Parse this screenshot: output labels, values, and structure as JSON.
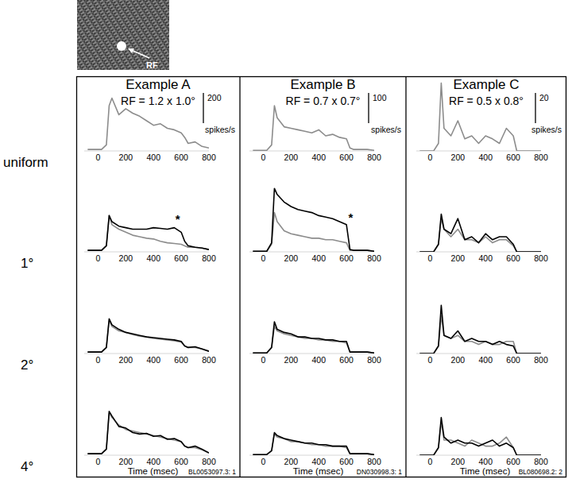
{
  "inset": {
    "label": "RF"
  },
  "rows": [
    "uniform",
    "1°",
    "2°",
    "4°"
  ],
  "columns": [
    {
      "title": "Example A",
      "subtitle": "RF = 1.2 x 1.0°",
      "id": "BL0053097.3: 1"
    },
    {
      "title": "Example B",
      "subtitle": "RF = 0.7 x 0.7°",
      "id": "DN030998.3: 1"
    },
    {
      "title": "Example C",
      "subtitle": "RF = 0.5 x 0.8°",
      "id": "BL080698.2: 2"
    }
  ],
  "chart_data": [
    {
      "type": "line",
      "x": [
        -75,
        -25,
        25,
        60,
        80,
        100,
        150,
        200,
        250,
        300,
        350,
        400,
        450,
        500,
        550,
        600,
        625,
        650,
        700,
        750,
        800
      ],
      "xlim": [
        -100,
        800
      ],
      "xticks": [
        0,
        200,
        400,
        600,
        800
      ],
      "ylim": [
        0,
        500
      ],
      "tick_labels": "x",
      "scale_bar": {
        "value": 200,
        "unit": "spikes/s"
      },
      "series": [
        {
          "color": "#8c8c8c",
          "values": [
            10,
            10,
            10,
            40,
            300,
            350,
            240,
            280,
            250,
            230,
            200,
            170,
            180,
            150,
            140,
            120,
            90,
            50,
            60,
            30,
            20
          ]
        }
      ]
    },
    {
      "type": "line",
      "x": [
        -75,
        -25,
        25,
        60,
        80,
        100,
        150,
        200,
        250,
        300,
        350,
        400,
        450,
        500,
        550,
        600,
        625,
        650,
        700,
        750,
        800
      ],
      "xlim": [
        -100,
        800
      ],
      "xticks": [
        0,
        200,
        400,
        600,
        800
      ],
      "ylim": [
        0,
        250
      ],
      "tick_labels": "x",
      "scale_bar": {
        "value": 100,
        "unit": "spikes/s"
      },
      "series": [
        {
          "color": "#8c8c8c",
          "values": [
            2,
            2,
            2,
            20,
            150,
            110,
            80,
            75,
            70,
            65,
            60,
            70,
            50,
            55,
            45,
            40,
            10,
            5,
            5,
            5,
            2
          ]
        }
      ]
    },
    {
      "type": "line",
      "x": [
        -75,
        -25,
        25,
        60,
        80,
        100,
        150,
        200,
        250,
        300,
        350,
        400,
        450,
        500,
        550,
        600,
        625,
        650,
        700,
        750,
        800
      ],
      "xlim": [
        -100,
        800
      ],
      "xticks": [
        0,
        200,
        400,
        600,
        800
      ],
      "ylim": [
        0,
        50
      ],
      "tick_labels": "x",
      "scale_bar": {
        "value": 20,
        "unit": "spikes/s"
      },
      "series": [
        {
          "color": "#8c8c8c",
          "values": [
            0,
            0,
            0,
            5,
            45,
            15,
            10,
            20,
            8,
            10,
            5,
            10,
            8,
            5,
            15,
            10,
            0,
            0,
            0,
            0,
            0
          ]
        }
      ]
    },
    {
      "type": "line",
      "x": [
        -75,
        -25,
        25,
        60,
        80,
        100,
        150,
        200,
        250,
        300,
        350,
        400,
        450,
        500,
        550,
        600,
        625,
        650,
        700,
        750,
        800
      ],
      "xlim": [
        -100,
        800
      ],
      "xticks": [
        0,
        200,
        400,
        600,
        800
      ],
      "ylim": [
        0,
        500
      ],
      "tick_labels": "x",
      "annotations": [
        {
          "text": "*",
          "x": 575,
          "y": 190
        }
      ],
      "series": [
        {
          "color": "#8c8c8c",
          "values": [
            10,
            10,
            10,
            40,
            240,
            180,
            150,
            130,
            110,
            100,
            90,
            85,
            70,
            60,
            55,
            50,
            40,
            30,
            30,
            25,
            15
          ]
        },
        {
          "color": "#000000",
          "values": [
            10,
            10,
            10,
            40,
            240,
            200,
            170,
            160,
            150,
            150,
            150,
            160,
            155,
            150,
            160,
            130,
            70,
            40,
            30,
            25,
            15
          ]
        }
      ]
    },
    {
      "type": "line",
      "x": [
        -75,
        -25,
        25,
        60,
        80,
        100,
        150,
        200,
        250,
        300,
        350,
        400,
        450,
        500,
        550,
        600,
        625,
        650,
        700,
        750,
        800
      ],
      "xlim": [
        -100,
        800
      ],
      "xticks": [
        0,
        200,
        400,
        600,
        800
      ],
      "ylim": [
        0,
        250
      ],
      "tick_labels": "x",
      "annotations": [
        {
          "text": "*",
          "x": 630,
          "y": 100
        }
      ],
      "series": [
        {
          "color": "#8c8c8c",
          "values": [
            2,
            2,
            2,
            25,
            130,
            100,
            70,
            60,
            55,
            50,
            45,
            45,
            40,
            40,
            35,
            30,
            5,
            5,
            5,
            5,
            2
          ]
        },
        {
          "color": "#000000",
          "values": [
            2,
            2,
            2,
            30,
            210,
            190,
            165,
            150,
            140,
            135,
            130,
            120,
            115,
            110,
            100,
            90,
            8,
            5,
            5,
            5,
            2
          ]
        }
      ]
    },
    {
      "type": "line",
      "x": [
        -75,
        -25,
        25,
        60,
        80,
        100,
        150,
        200,
        250,
        300,
        350,
        400,
        450,
        500,
        550,
        600,
        625,
        650,
        700,
        750,
        800
      ],
      "xlim": [
        -100,
        800
      ],
      "xticks": [
        0,
        200,
        400,
        600,
        800
      ],
      "ylim": [
        0,
        50
      ],
      "tick_labels": "x",
      "series": [
        {
          "color": "#8c8c8c",
          "values": [
            0,
            0,
            0,
            5,
            22,
            15,
            10,
            15,
            8,
            8,
            6,
            10,
            6,
            8,
            8,
            4,
            0,
            0,
            0,
            0,
            0
          ]
        },
        {
          "color": "#000000",
          "values": [
            0,
            0,
            0,
            5,
            25,
            15,
            12,
            22,
            8,
            10,
            6,
            12,
            8,
            10,
            10,
            5,
            0,
            0,
            0,
            0,
            0
          ]
        }
      ]
    },
    {
      "type": "line",
      "x": [
        -75,
        -25,
        25,
        60,
        80,
        100,
        150,
        200,
        250,
        300,
        350,
        400,
        450,
        500,
        550,
        600,
        625,
        650,
        700,
        750,
        800
      ],
      "xlim": [
        -100,
        800
      ],
      "xticks": [
        0,
        200,
        400,
        600,
        800
      ],
      "ylim": [
        0,
        500
      ],
      "tick_labels": "x",
      "series": [
        {
          "color": "#8c8c8c",
          "values": [
            10,
            10,
            10,
            40,
            220,
            180,
            150,
            140,
            125,
            115,
            110,
            100,
            95,
            90,
            85,
            75,
            50,
            40,
            40,
            30,
            15
          ]
        },
        {
          "color": "#000000",
          "values": [
            10,
            10,
            10,
            40,
            230,
            190,
            160,
            140,
            130,
            120,
            110,
            105,
            100,
            95,
            90,
            80,
            50,
            40,
            45,
            30,
            15
          ]
        }
      ]
    },
    {
      "type": "line",
      "x": [
        -75,
        -25,
        25,
        60,
        80,
        100,
        150,
        200,
        250,
        300,
        350,
        400,
        450,
        500,
        550,
        600,
        625,
        650,
        700,
        750,
        800
      ],
      "xlim": [
        -100,
        800
      ],
      "xticks": [
        0,
        200,
        400,
        600,
        800
      ],
      "ylim": [
        0,
        250
      ],
      "tick_labels": "x",
      "series": [
        {
          "color": "#8c8c8c",
          "values": [
            2,
            2,
            2,
            20,
            90,
            75,
            65,
            60,
            55,
            50,
            50,
            45,
            45,
            40,
            40,
            35,
            5,
            5,
            5,
            5,
            2
          ]
        },
        {
          "color": "#000000",
          "values": [
            2,
            2,
            2,
            20,
            105,
            80,
            70,
            65,
            55,
            55,
            50,
            50,
            45,
            45,
            40,
            40,
            5,
            5,
            5,
            5,
            2
          ]
        }
      ]
    },
    {
      "type": "line",
      "x": [
        -75,
        -25,
        25,
        60,
        80,
        100,
        150,
        200,
        250,
        300,
        350,
        400,
        450,
        500,
        550,
        600,
        625,
        650,
        700,
        750,
        800
      ],
      "xlim": [
        -100,
        800
      ],
      "xticks": [
        0,
        200,
        400,
        600,
        800
      ],
      "ylim": [
        0,
        50
      ],
      "tick_labels": "x",
      "series": [
        {
          "color": "#8c8c8c",
          "values": [
            0,
            0,
            0,
            5,
            25,
            12,
            10,
            12,
            8,
            8,
            6,
            8,
            6,
            6,
            8,
            8,
            0,
            0,
            0,
            0,
            0
          ]
        },
        {
          "color": "#000000",
          "values": [
            0,
            0,
            0,
            5,
            32,
            12,
            10,
            15,
            8,
            10,
            8,
            8,
            6,
            8,
            6,
            5,
            0,
            0,
            0,
            0,
            0
          ]
        }
      ]
    },
    {
      "type": "line",
      "x": [
        -75,
        -25,
        25,
        60,
        80,
        100,
        150,
        200,
        250,
        300,
        350,
        400,
        450,
        500,
        550,
        600,
        625,
        650,
        700,
        750,
        800
      ],
      "xlim": [
        -100,
        800
      ],
      "xticks": [
        0,
        200,
        400,
        600,
        800
      ],
      "ylim": [
        0,
        500
      ],
      "tick_labels": "x",
      "x_label": "Time (msec)",
      "series": [
        {
          "color": "#8c8c8c",
          "values": [
            10,
            10,
            10,
            40,
            280,
            250,
            200,
            170,
            160,
            150,
            140,
            130,
            120,
            110,
            100,
            90,
            60,
            50,
            50,
            35,
            15
          ]
        },
        {
          "color": "#000000",
          "values": [
            10,
            10,
            10,
            40,
            290,
            260,
            190,
            180,
            150,
            140,
            145,
            125,
            130,
            105,
            110,
            90,
            60,
            50,
            60,
            40,
            15
          ]
        }
      ]
    },
    {
      "type": "line",
      "x": [
        -75,
        -25,
        25,
        60,
        80,
        100,
        150,
        200,
        250,
        300,
        350,
        400,
        450,
        500,
        550,
        600,
        625,
        650,
        700,
        750,
        800
      ],
      "xlim": [
        -100,
        800
      ],
      "xticks": [
        0,
        200,
        400,
        600,
        800
      ],
      "ylim": [
        0,
        250
      ],
      "tick_labels": "x",
      "x_label": "Time (msec)",
      "series": [
        {
          "color": "#8c8c8c",
          "values": [
            2,
            2,
            2,
            15,
            70,
            60,
            55,
            45,
            45,
            40,
            35,
            35,
            30,
            30,
            30,
            25,
            5,
            5,
            5,
            5,
            2
          ]
        },
        {
          "color": "#000000",
          "values": [
            2,
            2,
            2,
            15,
            75,
            65,
            55,
            50,
            45,
            40,
            40,
            35,
            35,
            30,
            30,
            30,
            5,
            5,
            5,
            5,
            2
          ]
        }
      ]
    },
    {
      "type": "line",
      "x": [
        -75,
        -25,
        25,
        60,
        80,
        100,
        150,
        200,
        250,
        300,
        350,
        400,
        450,
        500,
        550,
        600,
        625,
        650,
        700,
        750,
        800
      ],
      "xlim": [
        -100,
        800
      ],
      "xticks": [
        0,
        200,
        400,
        600,
        800
      ],
      "ylim": [
        0,
        50
      ],
      "tick_labels": "x",
      "x_label": "Time (msec)",
      "series": [
        {
          "color": "#8c8c8c",
          "values": [
            0,
            0,
            0,
            5,
            22,
            10,
            10,
            8,
            6,
            10,
            8,
            6,
            6,
            8,
            12,
            5,
            0,
            0,
            0,
            0,
            0
          ]
        },
        {
          "color": "#000000",
          "values": [
            0,
            0,
            0,
            5,
            25,
            12,
            8,
            10,
            8,
            8,
            6,
            8,
            10,
            6,
            8,
            5,
            0,
            0,
            0,
            0,
            0
          ]
        }
      ]
    }
  ]
}
